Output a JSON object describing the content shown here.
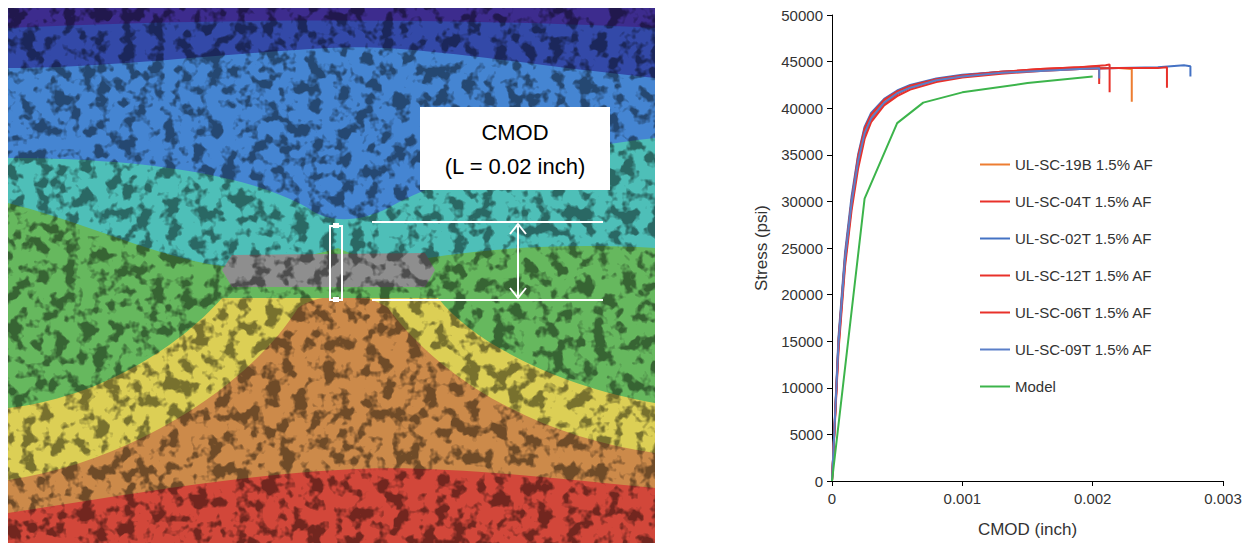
{
  "diagram": {
    "annotation": {
      "lines": [
        "CMOD",
        "(L = 0.02 inch)"
      ]
    }
  },
  "chart_data": {
    "type": "line",
    "x_label": "CMOD (inch)",
    "y_label": "Stress (psi)",
    "xlim": [
      0,
      0.003
    ],
    "xticks": [
      0,
      0.001,
      0.002,
      0.003
    ],
    "ylim": [
      0,
      50000
    ],
    "yticks": [
      0,
      5000,
      10000,
      15000,
      20000,
      25000,
      30000,
      35000,
      40000,
      45000,
      50000
    ],
    "grid": false,
    "legend": "right",
    "series": [
      {
        "name": "UL-SC-19B 1.5% AF",
        "color": "#ED7D31",
        "x": [
          0,
          5e-05,
          0.0001,
          0.00015,
          0.0002,
          0.00025,
          0.0003,
          0.0004,
          0.0005,
          0.0006,
          0.0008,
          0.001,
          0.0013,
          0.0016,
          0.0019,
          0.0022,
          0.0023,
          0.0023
        ],
        "values": [
          0,
          15000,
          24000,
          30000,
          34500,
          37500,
          39000,
          40800,
          41700,
          42300,
          43000,
          43400,
          43800,
          44100,
          44300,
          44300,
          44200,
          40700
        ]
      },
      {
        "name": "UL-SC-04T 1.5% AF",
        "color": "#E8312A",
        "x": [
          0,
          5e-05,
          0.0001,
          0.00015,
          0.0002,
          0.00025,
          0.0003,
          0.0004,
          0.0005,
          0.0006,
          0.0008,
          0.001,
          0.0013,
          0.0016,
          0.0019,
          0.0021,
          0.00213,
          0.00213
        ],
        "values": [
          0,
          14500,
          23500,
          29500,
          34000,
          37000,
          38800,
          40500,
          41500,
          42200,
          43000,
          43500,
          43900,
          44200,
          44400,
          44600,
          44700,
          41700
        ]
      },
      {
        "name": "UL-SC-02T 1.5% AF",
        "color": "#4472C4",
        "x": [
          0,
          5e-05,
          0.0001,
          0.00015,
          0.0002,
          0.00025,
          0.0003,
          0.0004,
          0.0005,
          0.0006,
          0.0008,
          0.001,
          0.0013,
          0.0016,
          0.0019,
          0.0022,
          0.0025,
          0.0027,
          0.00275,
          0.00275
        ],
        "values": [
          0,
          15500,
          24500,
          30500,
          35000,
          38000,
          39500,
          41000,
          41900,
          42500,
          43200,
          43600,
          43900,
          44100,
          44200,
          44300,
          44400,
          44600,
          44500,
          43400
        ]
      },
      {
        "name": "UL-SC-12T 1.5% AF",
        "color": "#E8312A",
        "x": [
          0,
          5e-05,
          0.0001,
          0.00015,
          0.0002,
          0.00025,
          0.0003,
          0.0004,
          0.0005,
          0.0006,
          0.0008,
          0.001,
          0.0013,
          0.0016,
          0.0019,
          0.0022,
          0.0025,
          0.00257,
          0.00257
        ],
        "values": [
          0,
          14000,
          23000,
          29000,
          33500,
          36700,
          38500,
          40300,
          41300,
          42000,
          42800,
          43300,
          43700,
          44000,
          44200,
          44300,
          44300,
          44400,
          42200
        ]
      },
      {
        "name": "UL-SC-06T 1.5% AF",
        "color": "#E8312A",
        "x": [
          0,
          5e-05,
          0.0001,
          0.00015,
          0.0002,
          0.00025,
          0.0003,
          0.0004,
          0.0005,
          0.0006,
          0.0008,
          0.001,
          0.0013,
          0.0016,
          0.0019,
          0.00205,
          0.00205
        ],
        "values": [
          0,
          15000,
          24000,
          30000,
          34800,
          37800,
          39300,
          40900,
          41800,
          42400,
          43100,
          43500,
          43900,
          44200,
          44400,
          44500,
          42600
        ]
      },
      {
        "name": "UL-SC-09T 1.5% AF",
        "color": "#5B7FC8",
        "x": [
          0,
          5e-05,
          0.0001,
          0.00015,
          0.0002,
          0.00025,
          0.0003,
          0.0004,
          0.0005,
          0.0006,
          0.0008,
          0.001,
          0.0013,
          0.0016,
          0.0019,
          0.00205,
          0.00205
        ],
        "values": [
          0,
          14800,
          23800,
          29800,
          34300,
          37300,
          38900,
          40600,
          41600,
          42200,
          43000,
          43400,
          43800,
          44000,
          44200,
          44300,
          43200
        ]
      },
      {
        "name": "Model",
        "color": "#3CB44B",
        "x": [
          0,
          0.00025,
          0.0005,
          0.0007,
          0.001,
          0.0015,
          0.002
        ],
        "values": [
          0,
          30300,
          38400,
          40600,
          41700,
          42700,
          43400
        ]
      }
    ]
  }
}
